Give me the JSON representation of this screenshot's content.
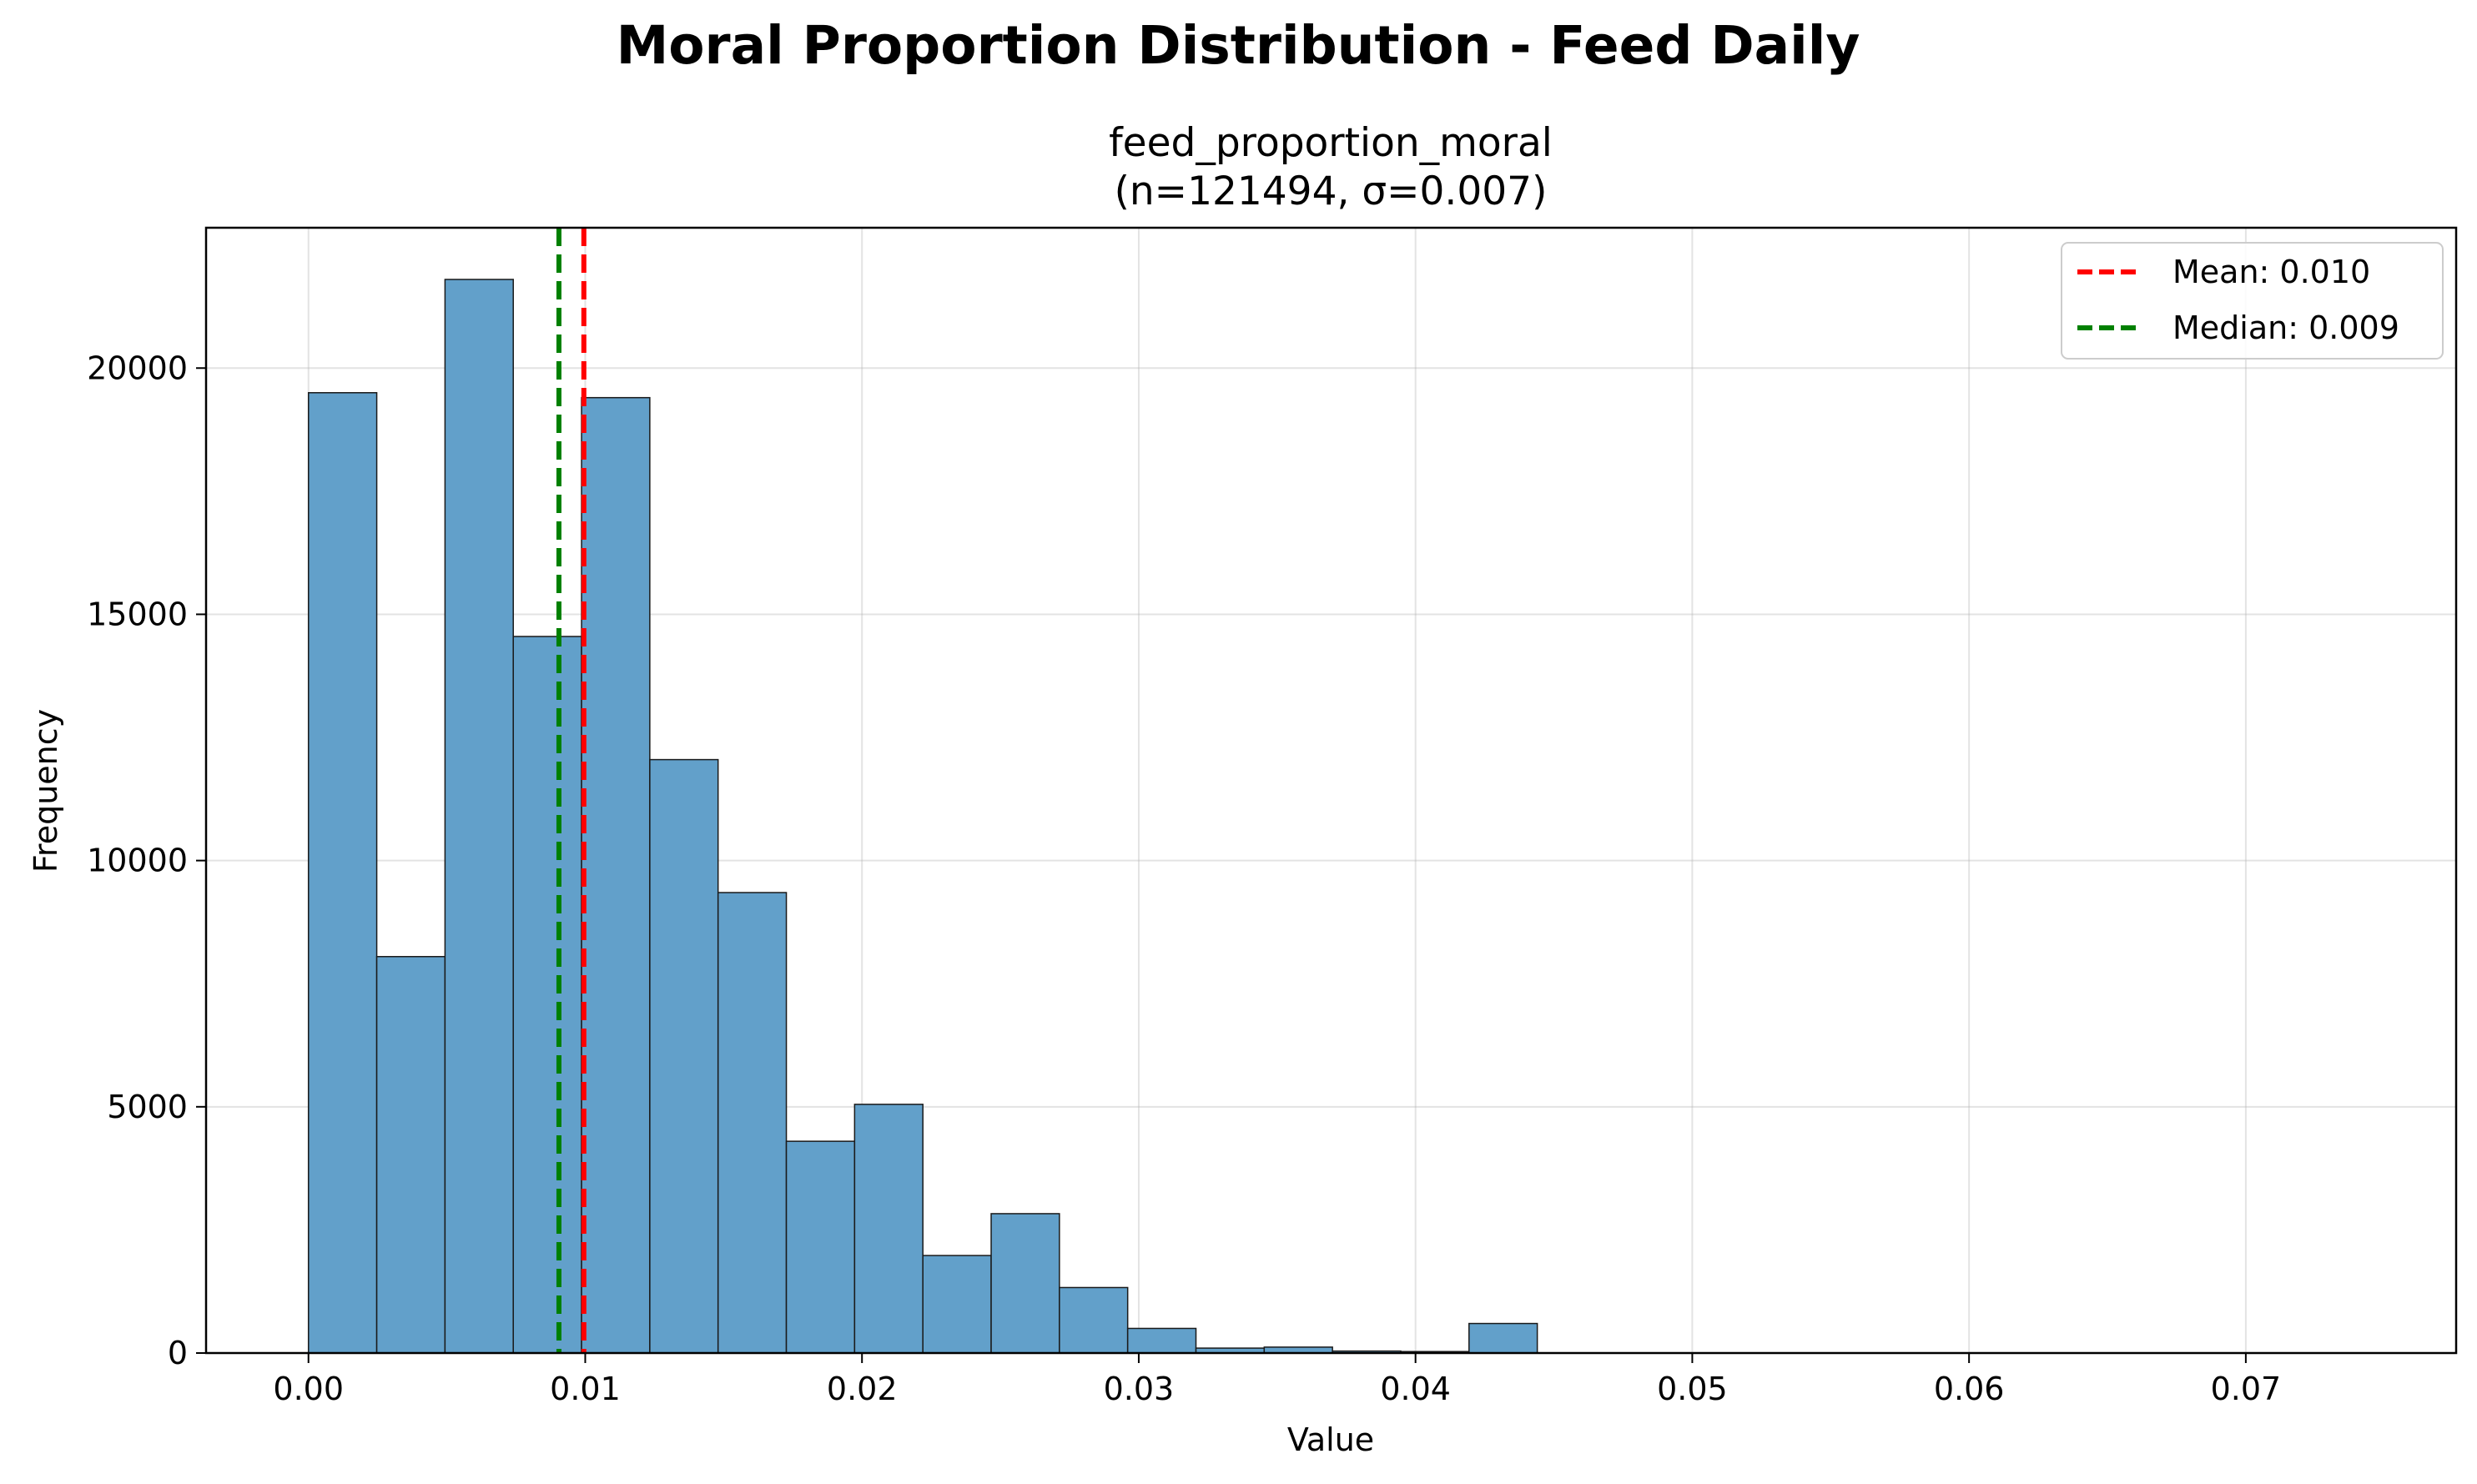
{
  "chart_data": {
    "type": "bar",
    "title": "Moral Proportion Distribution - Feed Daily",
    "subtitle_line1": "feed_proportion_moral",
    "subtitle_line2": "(n=121494, σ=0.007)",
    "xlabel": "Value",
    "ylabel": "Frequency",
    "xlim": [
      -0.0037,
      0.0776
    ],
    "ylim": [
      0,
      22850
    ],
    "xticks": [
      0.0,
      0.01,
      0.02,
      0.03,
      0.04,
      0.05,
      0.06,
      0.07
    ],
    "xtick_labels": [
      "0.00",
      "0.01",
      "0.02",
      "0.03",
      "0.04",
      "0.05",
      "0.06",
      "0.07"
    ],
    "yticks": [
      0,
      5000,
      10000,
      15000,
      20000
    ],
    "ytick_labels": [
      "0",
      "5000",
      "10000",
      "15000",
      "20000"
    ],
    "grid": true,
    "bin_edges": [
      0.0,
      0.002467,
      0.004933,
      0.0074,
      0.009867,
      0.012333,
      0.0148,
      0.017267,
      0.019733,
      0.0222,
      0.024667,
      0.027133,
      0.0296,
      0.032067,
      0.034533,
      0.037,
      0.039467,
      0.041933,
      0.0444,
      0.046867,
      0.049333,
      0.0518,
      0.054267,
      0.056733,
      0.0592,
      0.061667,
      0.064133,
      0.0666,
      0.069067,
      0.071533,
      0.074
    ],
    "values": [
      19500,
      8050,
      21800,
      14550,
      19400,
      12050,
      9350,
      4300,
      5050,
      1980,
      2830,
      1330,
      500,
      100,
      120,
      40,
      30,
      600,
      0,
      0,
      0,
      0,
      0,
      0,
      0,
      0,
      0,
      0,
      0,
      0
    ],
    "bar_color": "#62a0ca",
    "bar_edge_color": "#1a1a1a",
    "reference_lines": [
      {
        "name": "Mean: 0.010",
        "value": 0.00995,
        "color": "#ff0000",
        "style": "dashed"
      },
      {
        "name": "Median: 0.009",
        "value": 0.00905,
        "color": "#008000",
        "style": "dashed"
      }
    ],
    "legend_position": "top-right"
  }
}
